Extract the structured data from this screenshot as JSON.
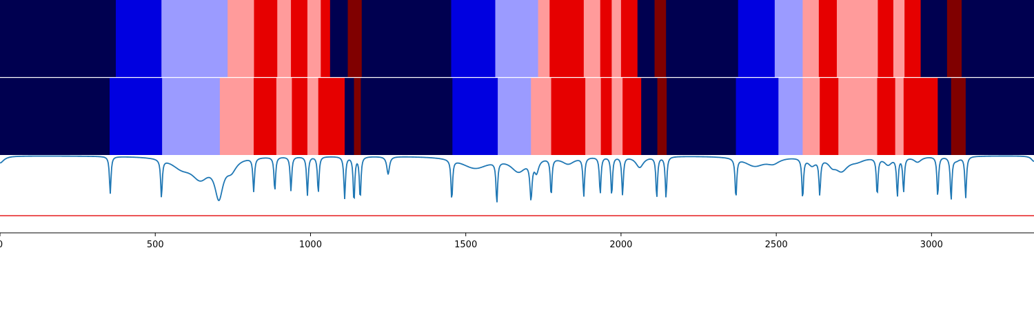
{
  "chart_data": {
    "type": "heatmap",
    "xlim": [
      0,
      3330
    ],
    "x_ticks": [
      0,
      500,
      1000,
      1500,
      2000,
      2500,
      3000
    ],
    "x_tick_labels": [
      "0",
      "500",
      "1000",
      "1500",
      "2000",
      "2500",
      "3000"
    ],
    "palette": {
      "0": "#000050",
      "1": "#0000e0",
      "2": "#9b9bff",
      "3": "#ff9b9b",
      "4": "#e60000",
      "5": "#800000"
    },
    "line_color": "#1f77b4",
    "threshold_color": "#e41a1c",
    "threshold_value": 0.22,
    "signal_ylim": [
      0,
      1
    ],
    "rows": [
      {
        "segments": [
          [
            0,
            373,
            0
          ],
          [
            373,
            520,
            1
          ],
          [
            520,
            733,
            2
          ],
          [
            733,
            818,
            3
          ],
          [
            818,
            893,
            4
          ],
          [
            893,
            937,
            3
          ],
          [
            937,
            990,
            4
          ],
          [
            990,
            1033,
            3
          ],
          [
            1033,
            1063,
            4
          ],
          [
            1063,
            1120,
            0
          ],
          [
            1120,
            1165,
            5
          ],
          [
            1165,
            1453,
            0
          ],
          [
            1453,
            1595,
            1
          ],
          [
            1595,
            1733,
            2
          ],
          [
            1733,
            1770,
            3
          ],
          [
            1770,
            1880,
            4
          ],
          [
            1880,
            1933,
            3
          ],
          [
            1933,
            1970,
            4
          ],
          [
            1970,
            2000,
            3
          ],
          [
            2000,
            2053,
            4
          ],
          [
            2053,
            2108,
            0
          ],
          [
            2108,
            2145,
            5
          ],
          [
            2145,
            2377,
            0
          ],
          [
            2377,
            2495,
            1
          ],
          [
            2495,
            2585,
            2
          ],
          [
            2585,
            2637,
            3
          ],
          [
            2637,
            2695,
            4
          ],
          [
            2695,
            2827,
            3
          ],
          [
            2827,
            2877,
            4
          ],
          [
            2877,
            2913,
            3
          ],
          [
            2913,
            2965,
            4
          ],
          [
            2965,
            3050,
            0
          ],
          [
            3050,
            3097,
            5
          ],
          [
            3097,
            3330,
            0
          ]
        ]
      },
      {
        "segments": [
          [
            0,
            353,
            0
          ],
          [
            353,
            522,
            1
          ],
          [
            522,
            708,
            2
          ],
          [
            708,
            817,
            3
          ],
          [
            817,
            890,
            4
          ],
          [
            890,
            940,
            3
          ],
          [
            940,
            990,
            4
          ],
          [
            990,
            1025,
            3
          ],
          [
            1025,
            1110,
            4
          ],
          [
            1110,
            1140,
            0
          ],
          [
            1140,
            1162,
            5
          ],
          [
            1162,
            1457,
            0
          ],
          [
            1457,
            1603,
            1
          ],
          [
            1603,
            1710,
            2
          ],
          [
            1710,
            1775,
            3
          ],
          [
            1775,
            1885,
            4
          ],
          [
            1885,
            1935,
            3
          ],
          [
            1935,
            1970,
            4
          ],
          [
            1970,
            2005,
            3
          ],
          [
            2005,
            2065,
            4
          ],
          [
            2065,
            2117,
            0
          ],
          [
            2117,
            2147,
            5
          ],
          [
            2147,
            2370,
            0
          ],
          [
            2370,
            2507,
            1
          ],
          [
            2507,
            2585,
            2
          ],
          [
            2585,
            2640,
            3
          ],
          [
            2640,
            2700,
            4
          ],
          [
            2700,
            2825,
            3
          ],
          [
            2825,
            2883,
            4
          ],
          [
            2883,
            2910,
            3
          ],
          [
            2910,
            3020,
            4
          ],
          [
            3020,
            3063,
            0
          ],
          [
            3063,
            3110,
            5
          ],
          [
            3110,
            3330,
            0
          ]
        ]
      }
    ],
    "signal_baseline": 0.99,
    "signal_dips": [
      [
        0,
        0.09,
        15
      ],
      [
        355,
        0.48,
        3
      ],
      [
        520,
        0.49,
        3
      ],
      [
        585,
        0.12,
        40
      ],
      [
        645,
        0.25,
        35
      ],
      [
        705,
        0.47,
        16
      ],
      [
        745,
        0.14,
        20
      ],
      [
        817,
        0.43,
        3
      ],
      [
        885,
        0.44,
        3
      ],
      [
        937,
        0.44,
        3
      ],
      [
        990,
        0.5,
        3
      ],
      [
        1025,
        0.47,
        3
      ],
      [
        1110,
        0.54,
        3
      ],
      [
        1140,
        0.58,
        3
      ],
      [
        1160,
        0.54,
        3
      ],
      [
        1250,
        0.23,
        5
      ],
      [
        1455,
        0.52,
        3
      ],
      [
        1530,
        0.15,
        55
      ],
      [
        1600,
        0.53,
        3
      ],
      [
        1670,
        0.18,
        30
      ],
      [
        1710,
        0.47,
        4
      ],
      [
        1728,
        0.16,
        8
      ],
      [
        1775,
        0.48,
        3
      ],
      [
        1830,
        0.09,
        25
      ],
      [
        1880,
        0.5,
        3
      ],
      [
        1933,
        0.48,
        3
      ],
      [
        1970,
        0.5,
        3
      ],
      [
        2005,
        0.49,
        3
      ],
      [
        2060,
        0.14,
        15
      ],
      [
        2115,
        0.53,
        3
      ],
      [
        2145,
        0.53,
        3
      ],
      [
        2370,
        0.51,
        3
      ],
      [
        2430,
        0.12,
        40
      ],
      [
        2490,
        0.07,
        25
      ],
      [
        2585,
        0.52,
        3
      ],
      [
        2615,
        0.1,
        15
      ],
      [
        2640,
        0.45,
        3
      ],
      [
        2680,
        0.08,
        15
      ],
      [
        2710,
        0.17,
        25
      ],
      [
        2760,
        0.05,
        30
      ],
      [
        2825,
        0.48,
        3
      ],
      [
        2860,
        0.1,
        15
      ],
      [
        2890,
        0.49,
        3
      ],
      [
        2910,
        0.44,
        3
      ],
      [
        2955,
        0.07,
        15
      ],
      [
        3020,
        0.52,
        3
      ],
      [
        3063,
        0.55,
        3
      ],
      [
        3080,
        0.05,
        15
      ],
      [
        3110,
        0.53,
        3
      ],
      [
        3330,
        0.07,
        10
      ]
    ]
  }
}
